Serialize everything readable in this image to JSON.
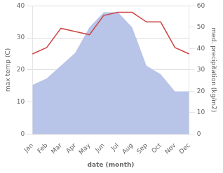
{
  "chart_data": {
    "type": "line",
    "xlabel": "date (month)",
    "ylabel": "max temp (C)",
    "y2label": "med. precipitation (kg/m2)",
    "categories": [
      "Jan",
      "Feb",
      "Mar",
      "Apr",
      "May",
      "Jun",
      "Jul",
      "Aug",
      "Sep",
      "Oct",
      "Nov",
      "Dec"
    ],
    "series": [
      {
        "type": "area",
        "axis": "y2",
        "color": "#b8c4e8",
        "values": [
          23,
          26,
          32,
          38,
          50,
          57,
          57,
          50,
          32,
          28,
          20,
          20
        ]
      },
      {
        "type": "line",
        "color": "#cc4444",
        "values": [
          25,
          27,
          33,
          32,
          31,
          37,
          38,
          38,
          35,
          35,
          27,
          25
        ]
      }
    ],
    "ylim": [
      0,
      40
    ],
    "yticks": [
      0,
      10,
      20,
      30,
      40
    ],
    "y2lim": [
      0,
      60
    ],
    "y2ticks": [
      0,
      10,
      20,
      30,
      40,
      50,
      60
    ],
    "grid": true
  }
}
